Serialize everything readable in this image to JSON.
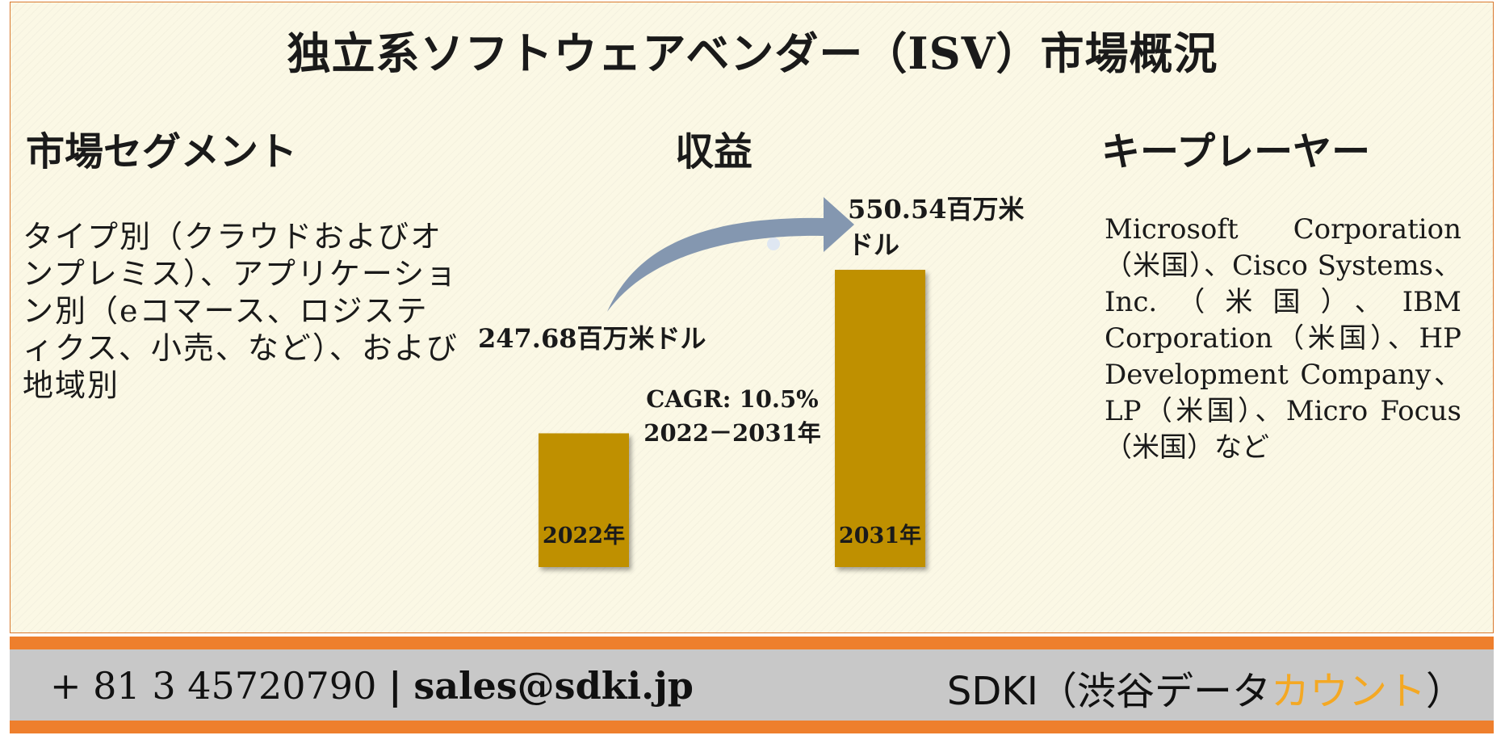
{
  "title": "独立系ソフトウェアベンダー（ISV）市場概況",
  "sections": {
    "segments_heading": "市場セグメント",
    "revenue_heading": "収益",
    "key_players_heading": "キープレーヤー"
  },
  "segments_text": "タイプ別（クラウドおよびオンプレミス）、アプリケーション別（eコマース、ロジスティクス、小売、など）、および地域別",
  "key_players_text": "Microsoft Corporation（米国）、Cisco Systems、Inc.（米国）、IBM Corporation（米国）、HP Development Company、LP（米国）、Micro Focus（米国）など",
  "chart_data": {
    "type": "bar",
    "categories": [
      "2022年",
      "2031年"
    ],
    "values": [
      247.68,
      550.54
    ],
    "value_labels": [
      "247.68百万米ドル",
      "550.54百万米ドル"
    ],
    "unit": "百万米ドル",
    "bar_color": "#bf9000",
    "arrow_color": "#8497b0",
    "cagr_label": "CAGR: 10.5%",
    "cagr_period": "2022－2031年"
  },
  "footer": {
    "phone": "+ 81 3 45720790",
    "separator": "|",
    "email": "sales@sdki.jp",
    "brand_prefix": "SDKI（渋谷データ",
    "brand_accent": "カウント",
    "brand_suffix": "）",
    "accent_color": "#f4a823",
    "bar_color": "#ee7f2d"
  }
}
